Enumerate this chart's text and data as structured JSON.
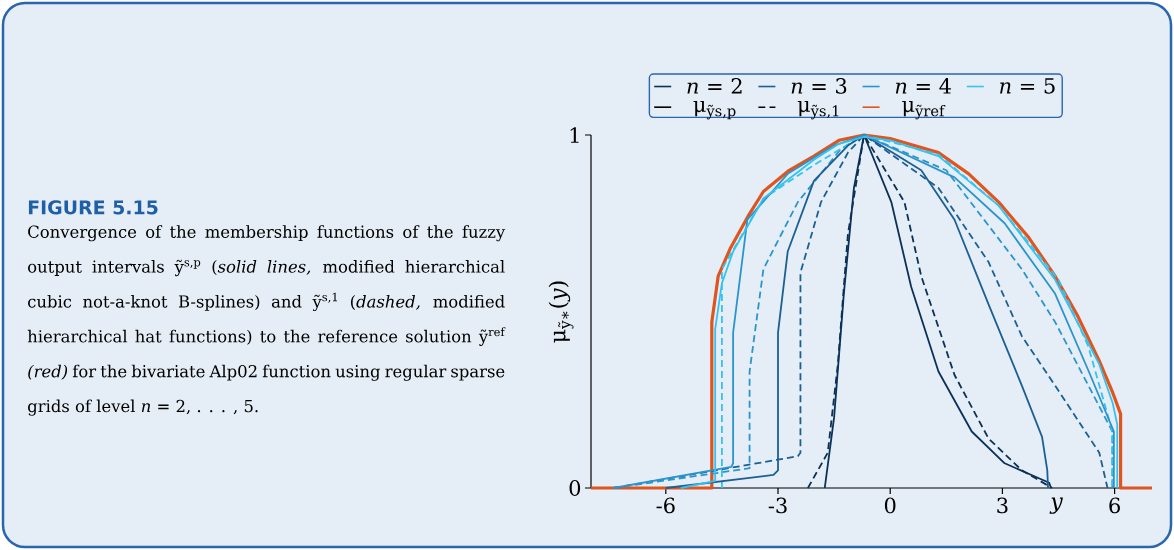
{
  "chart_data": {
    "type": "line",
    "title": "FIGURE 5.15",
    "subtitle": "Convergence of the membership functions of the fuzzy output intervals ỹ$^{s,p}$ (*solid lines,* modified hierarchical cubic not-a-knot B-splines) and ỹ$^{s,1}$ (*dashed,* modified hierarchical hat functions) to the reference solution ỹ$^{ref}$ *(red)* for the bivariate Alp02 function using regular sparse grids of level *n* = 2, . . . , 5.",
    "xlabel": "*y*",
    "ylabel": "μ$_{ỹ∗}$(*y*)",
    "annotations": [
      "μ$_{ỹs,p}$",
      "μ$_{ỹs,1}$"
    ],
    "xlim": [
      -8,
      7
    ],
    "ylim": [
      0,
      1
    ],
    "xticks": [
      -6,
      -3,
      0,
      3,
      6
    ],
    "yticks": [
      0,
      1
    ],
    "legend": "top",
    "marker": "none",
    "series": [
      {
        "name": "μ$_{ỹref}$",
        "color": "#e0541e",
        "line_style": "solid",
        "x": [
          -8,
          -4.77,
          -4.77,
          -4.6,
          -4.27,
          -3.8,
          -3.39,
          -2.7,
          -2.04,
          -1.37,
          -0.7,
          0,
          1.29,
          2.1,
          2.9,
          3.7,
          4.41,
          5.0,
          5.59,
          5.95,
          6.16,
          6.16,
          7
        ],
        "values": [
          0,
          0,
          0.47,
          0.6,
          0.68,
          0.77,
          0.84,
          0.9,
          0.94,
          0.985,
          1,
          0.99,
          0.95,
          0.89,
          0.81,
          0.71,
          0.6,
          0.49,
          0.36,
          0.27,
          0.21,
          0,
          0
        ]
      },
      {
        "name": "*n* = 2",
        "color": "#0b3158",
        "line_style": "solid",
        "x": [
          -1.75,
          -1.5,
          -1.24,
          -0.97,
          -0.7,
          0.03,
          0.56,
          1.29,
          2.18,
          3.06,
          4.25,
          4.3
        ],
        "values": [
          0,
          0.2,
          0.55,
          0.85,
          1,
          0.81,
          0.57,
          0.33,
          0.16,
          0.07,
          0.015,
          0
        ]
      },
      {
        "name": "*n* = 3",
        "color": "#1b5f94",
        "line_style": "solid",
        "x": [
          -6.0,
          -3.12,
          -3.0,
          -3.0,
          -2.74,
          -2.04,
          -1.13,
          -0.7,
          0.83,
          1.72,
          2.63,
          3.52,
          4.06,
          4.2,
          4.22
        ],
        "values": [
          0,
          0.037,
          0.05,
          0.44,
          0.67,
          0.87,
          0.97,
          1,
          0.9,
          0.76,
          0.52,
          0.29,
          0.145,
          0.05,
          0
        ]
      },
      {
        "name": "*n* = 4",
        "color": "#2a95cc",
        "line_style": "solid",
        "x": [
          -7.4,
          -4.25,
          -4.2,
          -4.2,
          -3.82,
          -2.74,
          -1.5,
          -0.7,
          1.72,
          3.06,
          4.41,
          5.31,
          5.98,
          5.98
        ],
        "values": [
          0,
          0.06,
          0.07,
          0.44,
          0.76,
          0.89,
          0.97,
          1,
          0.88,
          0.75,
          0.55,
          0.33,
          0.16,
          0
        ]
      },
      {
        "name": "*n* = 5",
        "color": "#34c3f0",
        "line_style": "solid",
        "x": [
          -5.6,
          -4.68,
          -4.68,
          -4.5,
          -4.2,
          -3.39,
          -2.04,
          -1.37,
          -0.7,
          0,
          1.29,
          2.9,
          4.41,
          5.59,
          5.95,
          6.07,
          6.07
        ],
        "values": [
          0,
          0.02,
          0.45,
          0.58,
          0.67,
          0.82,
          0.93,
          0.975,
          0.995,
          0.985,
          0.94,
          0.8,
          0.59,
          0.35,
          0.24,
          0.18,
          0
        ]
      },
      {
        "color": "#0b3158",
        "line_style": "dashed",
        "x": [
          -2.2,
          -1.67,
          -1.4,
          -1.13,
          -0.7,
          0.38,
          0.83,
          1.72,
          2.63,
          3.52,
          4.33
        ],
        "values": [
          0,
          0.1,
          0.35,
          0.72,
          1,
          0.81,
          0.6,
          0.32,
          0.14,
          0.05,
          0
        ]
      },
      {
        "color": "#1b5f94",
        "line_style": "dashed",
        "x": [
          -7.4,
          -2.47,
          -2.4,
          -2.4,
          -1.85,
          -1.13,
          -0.7,
          1.29,
          2.63,
          3.52,
          4.41,
          5.31,
          5.59,
          5.81
        ],
        "values": [
          0,
          0.09,
          0.1,
          0.61,
          0.81,
          0.95,
          1,
          0.85,
          0.64,
          0.43,
          0.29,
          0.145,
          0.1,
          0
        ]
      },
      {
        "color": "#2a95cc",
        "line_style": "dashed",
        "x": [
          -7.4,
          -3.76,
          -3.76,
          -3.39,
          -2.47,
          -1.32,
          -0.7,
          1.5,
          3.52,
          4.41,
          5.3,
          5.94,
          5.94
        ],
        "values": [
          0,
          0.056,
          0.33,
          0.62,
          0.81,
          0.96,
          1,
          0.9,
          0.62,
          0.47,
          0.29,
          0.16,
          0
        ]
      },
      {
        "color": "#34c3f0",
        "line_style": "dashed",
        "x": [
          -4.5,
          -4.5,
          -3.39,
          -2.04,
          -0.7,
          1.29,
          2.9,
          4.5,
          5.3,
          5.94,
          5.94
        ],
        "values": [
          0,
          0.62,
          0.82,
          0.915,
          1,
          0.945,
          0.8,
          0.59,
          0.4,
          0.16,
          0
        ]
      }
    ]
  }
}
